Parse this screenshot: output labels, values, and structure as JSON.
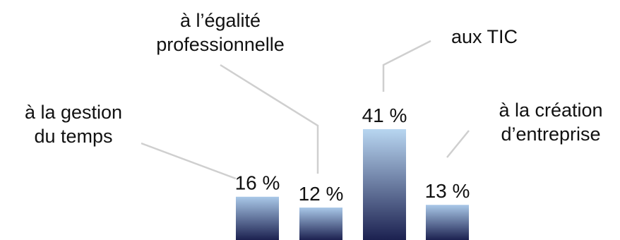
{
  "chart_data": {
    "type": "bar",
    "categories": [
      [
        "à la gestion",
        "du temps"
      ],
      [
        "à l’égalité",
        "professionnelle"
      ],
      [
        "aux TIC"
      ],
      [
        "à la création",
        "d’entreprise"
      ]
    ],
    "values": [
      16,
      12,
      41,
      13
    ],
    "value_labels": [
      "16 %",
      "12 %",
      "41 %",
      "13 %"
    ],
    "title": "",
    "xlabel": "",
    "ylabel": "",
    "ylim": [
      0,
      41
    ],
    "grid": false,
    "legend": "none",
    "colors": {
      "bar_top": "#a9c8e8",
      "bar_bottom": "#1c2150",
      "tallest_bar_top": "#b8d6f1",
      "leader_line": "#cfcfcf",
      "text": "#111111"
    }
  }
}
